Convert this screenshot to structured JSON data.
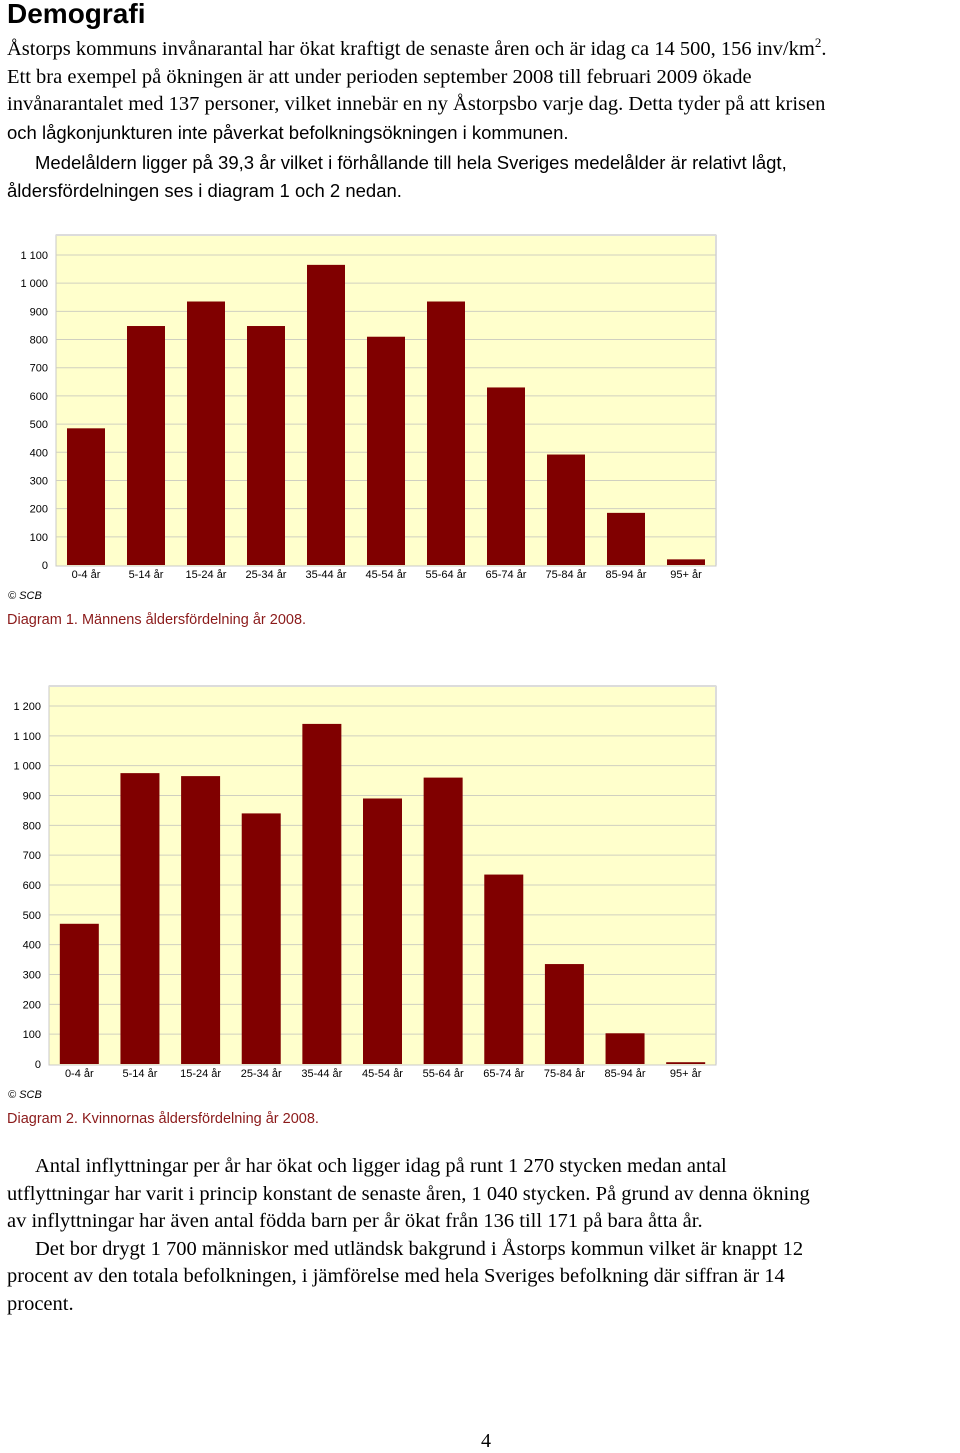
{
  "heading": "Demografi",
  "paragraphs": [
    {
      "lines": [
        "Åstorps kommuns invånarantal har ökat kraftigt de senaste åren och är idag ca 14 500, 156 inv/km",
        "Ett bra exempel på ökningen är att under perioden september 2008 till februari 2009 ökade",
        "invånarantalet med 137 personer, vilket innebär en ny Åstorpsbo varje dag. Detta tyder på att krisen",
        "och lågkonjunkturen inte påverkat befolkningsökningen i kommunen."
      ],
      "sup": "2",
      "after_sup": "."
    },
    {
      "lines": [
        "Medelåldern ligger på 39,3 år vilket i förhållande till hela Sveriges medelålder är relativt lågt,",
        "åldersfördelningen ses i diagram 1 och 2 nedan."
      ]
    },
    {
      "lines": [
        "Antal inflyttningar per år har ökat och ligger idag på runt 1 270 stycken medan antal",
        "utflyttningar har varit i princip konstant de senaste åren, 1 040 stycken. På grund av denna ökning",
        "av inflyttningar har även antal födda barn per år ökat från 136 till 171 på bara åtta år."
      ]
    },
    {
      "lines": [
        "Det bor drygt 1 700 människor med utländsk bakgrund i Åstorps kommun vilket är knappt 12",
        "procent av den totala befolkningen, i jämförelse med hela Sveriges befolkning där siffran är 14",
        "procent."
      ]
    }
  ],
  "chart_data": [
    {
      "type": "bar",
      "categories": [
        "0-4 år",
        "5-14 år",
        "15-24 år",
        "25-34 år",
        "35-44 år",
        "45-54 år",
        "55-64 år",
        "65-74 år",
        "75-84 år",
        "85-94 år",
        "95+ år"
      ],
      "values": [
        485,
        848,
        935,
        848,
        1065,
        810,
        935,
        630,
        392,
        185,
        20
      ],
      "ylim": [
        0,
        1100
      ],
      "yticks": [
        0,
        100,
        200,
        300,
        400,
        500,
        600,
        700,
        800,
        900,
        1000,
        1100
      ],
      "ytick_labels": [
        "0",
        "100",
        "200",
        "300",
        "400",
        "500",
        "600",
        "700",
        "800",
        "900",
        "1 000",
        "1 100"
      ],
      "grid": true,
      "bar_color": "#800000",
      "plot_bg": "#ffffcc",
      "source": "© SCB",
      "caption": "Diagram 1. Männens åldersfördelning år 2008."
    },
    {
      "type": "bar",
      "categories": [
        "0-4 år",
        "5-14 år",
        "15-24 år",
        "25-34 år",
        "35-44 år",
        "45-54 år",
        "55-64 år",
        "65-74 år",
        "75-84 år",
        "85-94 år",
        "95+ år"
      ],
      "values": [
        470,
        975,
        965,
        840,
        1140,
        890,
        960,
        635,
        335,
        103,
        6
      ],
      "ylim": [
        0,
        1200
      ],
      "yticks": [
        0,
        100,
        200,
        300,
        400,
        500,
        600,
        700,
        800,
        900,
        1000,
        1100,
        1200
      ],
      "ytick_labels": [
        "0",
        "100",
        "200",
        "300",
        "400",
        "500",
        "600",
        "700",
        "800",
        "900",
        "1 000",
        "1 100",
        "1 200"
      ],
      "grid": true,
      "bar_color": "#800000",
      "plot_bg": "#ffffcc",
      "source": "© SCB",
      "caption": "Diagram 2. Kvinnornas åldersfördelning år 2008."
    }
  ],
  "page_number": "4"
}
